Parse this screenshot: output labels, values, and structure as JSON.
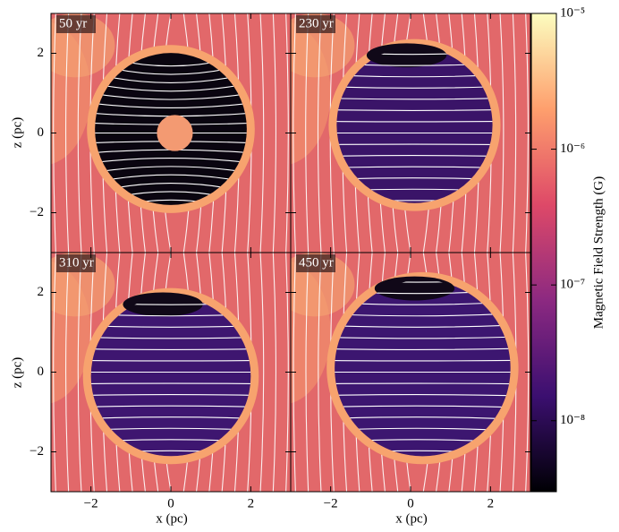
{
  "chart_data": {
    "type": "heatmap",
    "panels": [
      {
        "label": "50 yr"
      },
      {
        "label": "230 yr"
      },
      {
        "label": "310 yr"
      },
      {
        "label": "450 yr"
      }
    ],
    "xlabel": "x  (pc)",
    "ylabel": "z  (pc)",
    "xlim": [
      -3,
      3
    ],
    "ylim": [
      -3,
      3
    ],
    "xticks": [
      {
        "value": -2,
        "label": "−2"
      },
      0,
      2
    ],
    "yticks": [
      {
        "value": -2,
        "label": "−2"
      },
      0,
      2
    ],
    "colorbar": {
      "label": "Magnetic Field Strength  (G)",
      "log": true,
      "colormap": "magma",
      "lim": [
        3e-09,
        1e-05
      ],
      "ticks": [
        {
          "value": 1e-08,
          "label": "10⁻⁸"
        },
        {
          "value": 1e-07,
          "label": "10⁻⁷"
        },
        {
          "value": 1e-06,
          "label": "10⁻⁶"
        },
        {
          "value": 1e-05,
          "label": "10⁻⁵"
        }
      ]
    }
  }
}
